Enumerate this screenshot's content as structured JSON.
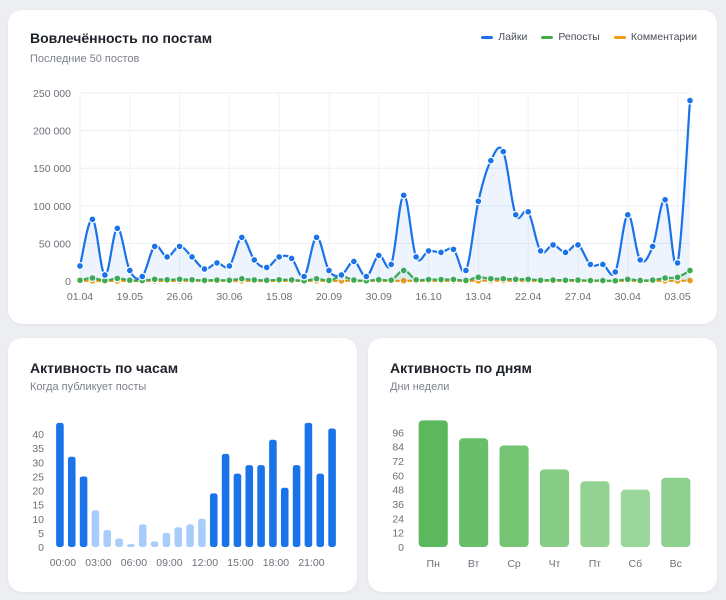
{
  "engagement": {
    "title": "Вовлечённость по постам",
    "subtitle": "Последние 50 постов",
    "legend": [
      {
        "label": "Лайки",
        "color": "#1a73e8"
      },
      {
        "label": "Репосты",
        "color": "#3fae49"
      },
      {
        "label": "Комментарии",
        "color": "#f29a12"
      }
    ]
  },
  "hours": {
    "title": "Активность по часам",
    "subtitle": "Когда публикует посты"
  },
  "days": {
    "title": "Активность по дням",
    "subtitle": "Дни недели"
  },
  "chart_data": [
    {
      "type": "line",
      "title": "Вовлечённость по постам",
      "subtitle": "Последние 50 постов",
      "ylim": [
        0,
        250000
      ],
      "y_ticks": [
        "0",
        "50 000",
        "100 000",
        "150 000",
        "200 000",
        "250 000"
      ],
      "x_tick_labels": [
        {
          "label": "01.04",
          "index": 0
        },
        {
          "label": "19.05",
          "index": 4
        },
        {
          "label": "26.06",
          "index": 8
        },
        {
          "label": "30.06",
          "index": 12
        },
        {
          "label": "15.08",
          "index": 16
        },
        {
          "label": "20.09",
          "index": 20
        },
        {
          "label": "30.09",
          "index": 24
        },
        {
          "label": "16.10",
          "index": 28
        },
        {
          "label": "13.04",
          "index": 32
        },
        {
          "label": "22.04",
          "index": 36
        },
        {
          "label": "27.04",
          "index": 40
        },
        {
          "label": "30.04",
          "index": 44
        },
        {
          "label": "03.05",
          "index": 48
        }
      ],
      "series": [
        {
          "name": "Лайки",
          "color": "#1a73e8",
          "values": [
            20000,
            82000,
            8000,
            70000,
            14000,
            6000,
            46000,
            32000,
            46000,
            32000,
            16000,
            24000,
            20000,
            58000,
            28000,
            18000,
            32000,
            30000,
            6000,
            58000,
            14000,
            8000,
            26000,
            6000,
            34000,
            22000,
            114000,
            32000,
            40000,
            38000,
            42000,
            14000,
            106000,
            160000,
            172000,
            88000,
            92000,
            40000,
            48000,
            38000,
            48000,
            22000,
            22000,
            12000,
            88000,
            28000,
            46000,
            108000,
            24000,
            240000
          ]
        },
        {
          "name": "Репосты",
          "color": "#3fae49",
          "values": [
            1000,
            4000,
            500,
            3500,
            1000,
            500,
            2300,
            1600,
            2300,
            1600,
            800,
            1200,
            1000,
            2900,
            1400,
            900,
            1600,
            1500,
            300,
            2900,
            700,
            6000,
            1300,
            300,
            1700,
            1100,
            14000,
            1600,
            2000,
            1900,
            2100,
            700,
            5000,
            3000,
            3000,
            2200,
            2300,
            1000,
            1200,
            1000,
            1200,
            600,
            600,
            300,
            2200,
            700,
            1200,
            4000,
            5000,
            14000
          ]
        },
        {
          "name": "Комментарии",
          "color": "#f29a12",
          "values": [
            100,
            200,
            50,
            150,
            80,
            40,
            120,
            90,
            120,
            90,
            60,
            70,
            60,
            150,
            80,
            60,
            90,
            90,
            30,
            150,
            50,
            100,
            70,
            30,
            90,
            70,
            300,
            90,
            100,
            100,
            110,
            60,
            300,
            500,
            500,
            250,
            260,
            120,
            140,
            110,
            140,
            70,
            70,
            40,
            250,
            90,
            130,
            300,
            80,
            600
          ]
        }
      ]
    },
    {
      "type": "bar",
      "title": "Активность по часам",
      "subtitle": "Когда публикует посты",
      "ylim": [
        0,
        45
      ],
      "y_ticks": [
        0,
        5,
        10,
        15,
        20,
        25,
        30,
        35,
        40
      ],
      "x_tick_labels": [
        {
          "label": "00:00",
          "index": 0
        },
        {
          "label": "03:00",
          "index": 3
        },
        {
          "label": "06:00",
          "index": 6
        },
        {
          "label": "09:00",
          "index": 9
        },
        {
          "label": "12:00",
          "index": 12
        },
        {
          "label": "15:00",
          "index": 15
        },
        {
          "label": "18:00",
          "index": 18
        },
        {
          "label": "21:00",
          "index": 21
        }
      ],
      "categories": [
        "00",
        "01",
        "02",
        "03",
        "04",
        "05",
        "06",
        "07",
        "08",
        "09",
        "10",
        "11",
        "12",
        "13",
        "14",
        "15",
        "16",
        "17",
        "18",
        "19",
        "20",
        "21",
        "22",
        "23"
      ],
      "values": [
        44,
        32,
        25,
        13,
        6,
        3,
        1,
        8,
        2,
        5,
        7,
        8,
        10,
        19,
        33,
        26,
        29,
        29,
        38,
        21,
        29,
        44,
        26,
        42
      ],
      "colors": {
        "high": "#1a73e8",
        "low": "#a9cdfb",
        "threshold": 15
      }
    },
    {
      "type": "bar",
      "title": "Активность по дням",
      "subtitle": "Дни недели",
      "ylim": [
        0,
        108
      ],
      "y_ticks": [
        0,
        12,
        24,
        36,
        48,
        60,
        72,
        84,
        96
      ],
      "categories": [
        "Пн",
        "Вт",
        "Ср",
        "Чт",
        "Пт",
        "Сб",
        "Вс"
      ],
      "values": [
        106,
        91,
        85,
        65,
        55,
        48,
        58
      ],
      "colors": [
        "#5cb85c",
        "#69bf69",
        "#74c474",
        "#86cc86",
        "#93d293",
        "#9ad69a",
        "#8ed08e"
      ]
    }
  ]
}
